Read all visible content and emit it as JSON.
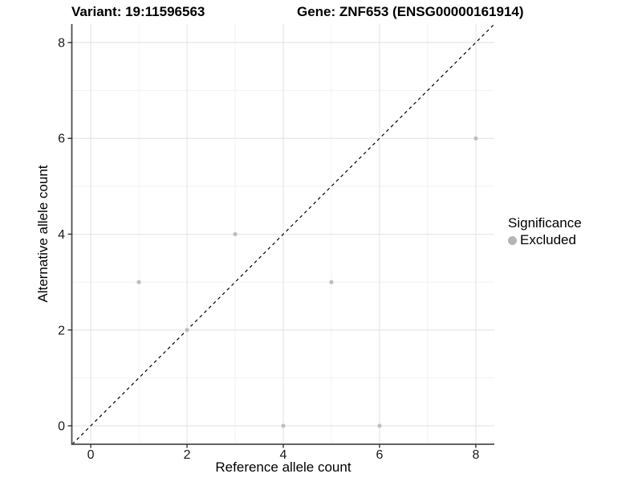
{
  "header": {
    "title_left": "Variant: 19:11596563",
    "title_right": "Gene: ZNF653 (ENSG00000161914)"
  },
  "legend": {
    "title": "Significance",
    "items": [
      {
        "label": "Excluded",
        "color": "#b5b5b5"
      }
    ]
  },
  "colors": {
    "background": "#ffffff",
    "axis_line": "#4d4d4d",
    "tick_mark": "#333333",
    "tick_label": "#1a1a1a",
    "grid_major": "#e4e4e4",
    "grid_minor": "#f1f1f1",
    "point": "#bebebe",
    "reference_line": "#000000"
  },
  "chart_data": {
    "type": "scatter",
    "title": "Variant: 19:11596563  |  Gene: ZNF653 (ENSG00000161914)",
    "xlabel": "Reference allele count",
    "ylabel": "Alternative allele count",
    "xlim": [
      -0.385,
      8.385
    ],
    "ylim": [
      -0.385,
      8.385
    ],
    "x_ticks": [
      0,
      2,
      4,
      6,
      8
    ],
    "y_ticks": [
      0,
      2,
      4,
      6,
      8
    ],
    "x_minor_ticks": [
      1,
      3,
      5,
      7
    ],
    "y_minor_ticks": [
      1,
      3,
      5,
      7
    ],
    "grid": true,
    "legend_position": "right",
    "series": [
      {
        "name": "Excluded",
        "color": "#bebebe",
        "points": [
          [
            1,
            3
          ],
          [
            2,
            2
          ],
          [
            3,
            4
          ],
          [
            4,
            0
          ],
          [
            5,
            3
          ],
          [
            6,
            0
          ],
          [
            8,
            6
          ]
        ]
      }
    ],
    "reference_line": {
      "type": "identity",
      "style": "dashed",
      "slope": 1,
      "intercept": 0
    }
  }
}
